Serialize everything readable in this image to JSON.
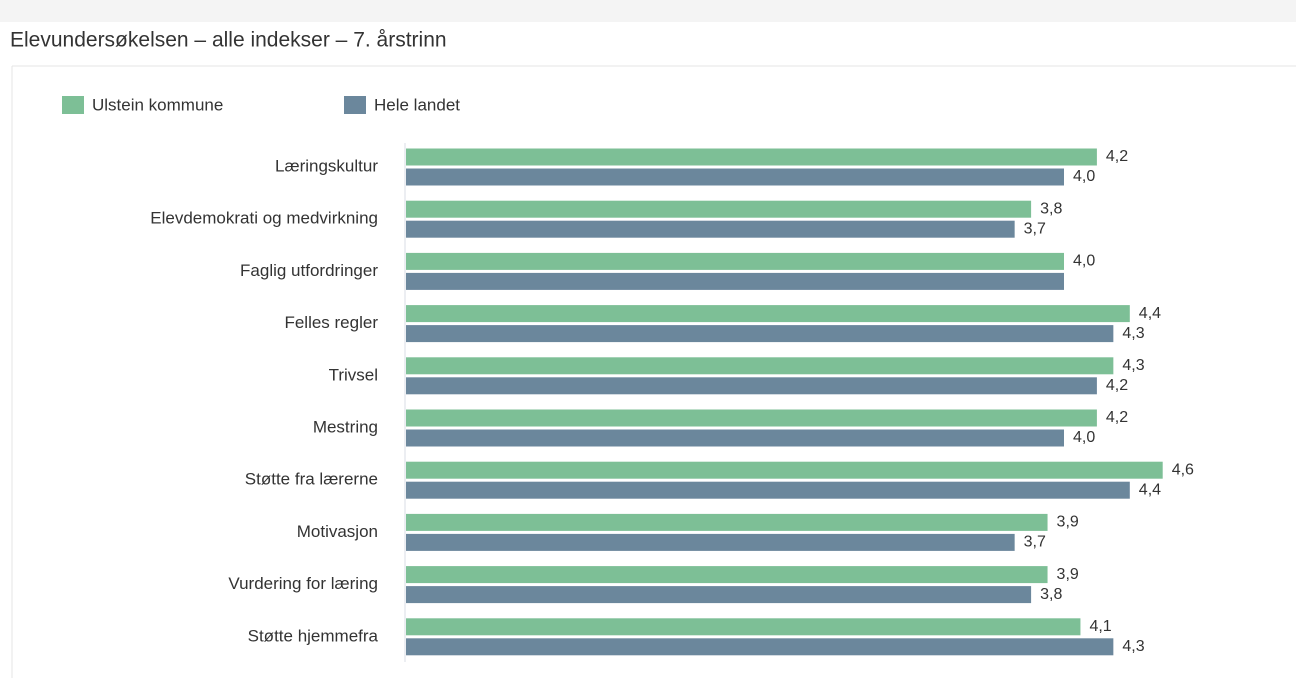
{
  "chart_data": {
    "type": "hbar",
    "title": "Elevundersøkelsen – alle indekser – 7. årstrinn",
    "categories": [
      "Læringskultur",
      "Elevdemokrati og medvirkning",
      "Faglig utfordringer",
      "Felles regler",
      "Trivsel",
      "Mestring",
      "Støtte fra lærerne",
      "Motivasjon",
      "Vurdering for læring",
      "Støtte hjemmefra"
    ],
    "series": [
      {
        "name": "Ulstein kommune",
        "color": "#7dbf96",
        "values": [
          4.2,
          3.8,
          4.0,
          4.4,
          4.3,
          4.2,
          4.6,
          3.9,
          3.9,
          4.1
        ],
        "value_labels": [
          "4,2",
          "3,8",
          "4,0",
          "4,4",
          "4,3",
          "4,2",
          "4,6",
          "3,9",
          "3,9",
          "4,1"
        ]
      },
      {
        "name": "Hele landet",
        "color": "#6b879c",
        "values": [
          4.0,
          3.7,
          4.0,
          4.3,
          4.2,
          4.0,
          4.4,
          3.7,
          3.8,
          4.3
        ],
        "value_labels": [
          "4,0",
          "3,7",
          null,
          "4,3",
          "4,2",
          "4,0",
          "4,4",
          "3,7",
          "3,8",
          "4,3"
        ]
      }
    ],
    "xlim": [
      0,
      5
    ]
  }
}
